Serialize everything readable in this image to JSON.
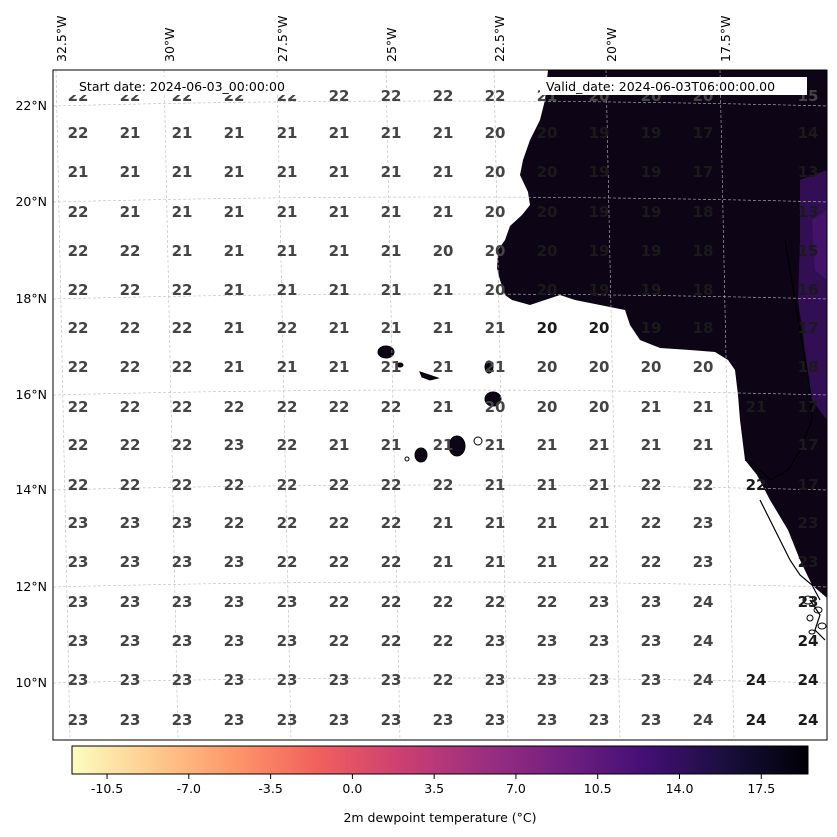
{
  "map": {
    "start_date_label": "Start date: 2024-06-03_00:00:00",
    "valid_date_label": "Valid_date: 2024-06-03T06:00:00.00",
    "lon_labels": [
      "32.5°W",
      "30°W",
      "27.5°W",
      "25°W",
      "22.5°W",
      "20°W",
      "17.5°W"
    ],
    "lat_labels": [
      "22°N",
      "20°N",
      "18°N",
      "16°N",
      "14°N",
      "12°N",
      "10°N"
    ],
    "grid_rows": [
      [
        "22",
        "21",
        "21",
        "21",
        "21",
        "21",
        "21",
        "21",
        "20",
        "20",
        "19",
        "19",
        "17",
        "14"
      ],
      [
        "21",
        "21",
        "21",
        "21",
        "21",
        "21",
        "21",
        "21",
        "20",
        "20",
        "19",
        "19",
        "17",
        "13"
      ],
      [
        "22",
        "21",
        "21",
        "21",
        "21",
        "21",
        "21",
        "21",
        "20",
        "20",
        "19",
        "19",
        "18",
        "13"
      ],
      [
        "22",
        "22",
        "21",
        "21",
        "21",
        "21",
        "21",
        "20",
        "20",
        "20",
        "19",
        "19",
        "18",
        "15"
      ],
      [
        "22",
        "22",
        "22",
        "21",
        "21",
        "21",
        "21",
        "21",
        "20",
        "20",
        "19",
        "19",
        "18",
        "16"
      ],
      [
        "22",
        "22",
        "22",
        "21",
        "22",
        "21",
        "21",
        "21",
        "21",
        "20",
        "20",
        "19",
        "18",
        "17"
      ],
      [
        "22",
        "22",
        "22",
        "21",
        "21",
        "21",
        "21",
        "21",
        "21",
        "20",
        "20",
        "20",
        "20",
        "18"
      ],
      [
        "22",
        "22",
        "22",
        "22",
        "22",
        "22",
        "22",
        "21",
        "20",
        "20",
        "20",
        "21",
        "21",
        "21",
        "17"
      ],
      [
        "22",
        "22",
        "22",
        "23",
        "22",
        "21",
        "21",
        "21",
        "21",
        "21",
        "21",
        "21",
        "21",
        "17"
      ],
      [
        "22",
        "22",
        "22",
        "22",
        "22",
        "22",
        "22",
        "22",
        "21",
        "21",
        "21",
        "22",
        "22",
        "22",
        "17"
      ],
      [
        "23",
        "23",
        "23",
        "22",
        "22",
        "22",
        "22",
        "21",
        "21",
        "21",
        "21",
        "22",
        "23",
        "23"
      ],
      [
        "23",
        "23",
        "23",
        "23",
        "22",
        "22",
        "22",
        "21",
        "21",
        "21",
        "22",
        "22",
        "23",
        "23"
      ],
      [
        "23",
        "23",
        "23",
        "23",
        "23",
        "22",
        "22",
        "22",
        "22",
        "22",
        "23",
        "23",
        "24",
        "23"
      ],
      [
        "23",
        "23",
        "23",
        "23",
        "23",
        "22",
        "22",
        "22",
        "23",
        "23",
        "23",
        "23",
        "24",
        "24"
      ],
      [
        "23",
        "23",
        "23",
        "23",
        "23",
        "23",
        "23",
        "22",
        "23",
        "23",
        "23",
        "23",
        "24",
        "24",
        "24"
      ],
      [
        "23",
        "23",
        "23",
        "23",
        "23",
        "23",
        "23",
        "23",
        "23",
        "23",
        "23",
        "23",
        "24",
        "24",
        "24"
      ]
    ],
    "top_partial_row": [
      "22",
      "22",
      "22",
      "22",
      "22",
      "22",
      "22",
      "22",
      "22",
      "21",
      "20",
      "20",
      "20",
      "15"
    ],
    "land_color": "#0d0416",
    "land_accent_color": "#4a1673"
  },
  "colorbar": {
    "label": "2m dewpoint temperature ($^\\circ$C)",
    "label_display": "2m dewpoint temperature (°C)",
    "ticks": [
      "-10.5",
      "-7.0",
      "-3.5",
      "0.0",
      "3.5",
      "7.0",
      "10.5",
      "14.0",
      "17.5"
    ],
    "colormap": "magma_r",
    "stops": [
      "#fcfdbf",
      "#feca8d",
      "#fd9668",
      "#f1605d",
      "#cd4071",
      "#9e2f7f",
      "#721f81",
      "#440f76",
      "#180f3d",
      "#000004"
    ]
  }
}
